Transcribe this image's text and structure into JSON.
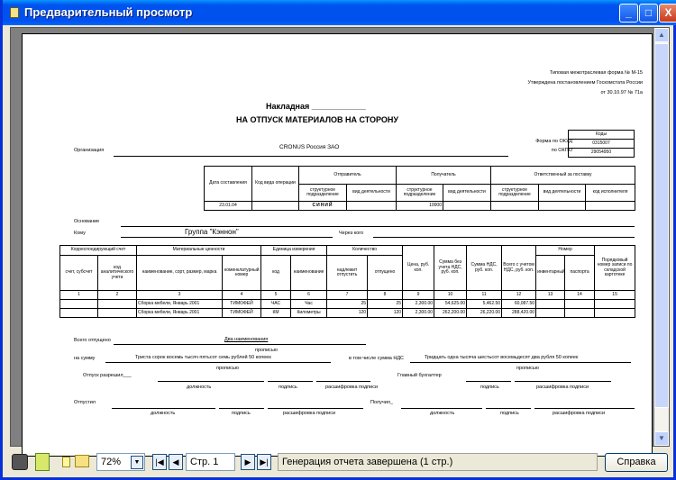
{
  "window": {
    "title": "Предварительный просмотр",
    "minimize": "_",
    "maximize": "□",
    "close": "X"
  },
  "doc": {
    "form_header": [
      "Типовая межотраслевая форма № М-15",
      "Утверждена постановлением Госкомстата России",
      "от 30.10.97 № 71а"
    ],
    "title1": "Накладная ____________",
    "title2": "НА ОТПУСК МАТЕРИАЛОВ НА СТОРОНУ",
    "codes": {
      "header": "Коды",
      "okud_label": "Форма по ОКУД",
      "okud": "0315007",
      "okpo_label": "по ОКПО",
      "okpo": "29054950"
    },
    "org_label": "Организация",
    "org": "CRONUS Россия ЗАО",
    "head_table": {
      "date": "Дата составления",
      "op_code": "Код вида операции",
      "sender": "Отправитель",
      "receiver": "Получатель",
      "responsible": "Ответственный за поставку",
      "struct": "структурное подразделение",
      "activity": "вид деятельности",
      "executor": "код исполнителя",
      "date_val": "23.01.04",
      "sender_struct": "СИНИЙ",
      "receiver_struct": "10000"
    },
    "basis_label": "Основание",
    "to_label": "Кому",
    "to": "Группа \"Кэннон\"",
    "via_label": "Через кого",
    "main_table": {
      "h_account": "Корреспондирующий счет",
      "h_material": "Материальные ценности",
      "h_unit": "Единица измерения",
      "h_qty": "Количество",
      "h_number": "Номер",
      "cols": [
        "счет, субсчет",
        "код аналитического учета",
        "наименование, сорт, размер, марка",
        "номенклатурный номер",
        "код",
        "наименование",
        "надлежит отпустить",
        "отпущено",
        "Цена, руб. коп.",
        "Сумма без учета НДС, руб. коп.",
        "Сумма НДС, руб. коп.",
        "Всего с учетом НДС, руб. коп.",
        "инвентарный",
        "паспорта",
        "Порядковый номер записи по складской картотеке"
      ],
      "nums": [
        "1",
        "2",
        "3",
        "4",
        "5",
        "6",
        "7",
        "8",
        "9",
        "10",
        "11",
        "12",
        "13",
        "14",
        "15"
      ],
      "rows": [
        [
          "",
          "",
          "Сборка мебели, Январь 2001",
          "ТИМОФЕЙ",
          "ЧАС",
          "Час",
          "25",
          "25",
          "2,300.00",
          "54,625.00",
          "5,462.50",
          "60,087.50",
          "",
          "",
          ""
        ],
        [
          "",
          "",
          "Сборка мебели, Январь 2001",
          "ТИМОФЕЙ",
          "КМ",
          "Километры",
          "120",
          "120",
          "2,300.00",
          "262,200.00",
          "26,220.00",
          "288,420.00",
          "",
          "",
          ""
        ]
      ]
    },
    "total_label": "Всего отпущено",
    "total_items": "Два наименования",
    "in_words": "прописью",
    "sum_label": "на сумму",
    "sum_words": "Триста сорок восемь тысяч пятьсот семь рублей 50 копеек",
    "vat_label": "в том числе сумма НДС",
    "vat_words": "Тридцать одна тысяча шестьсот восемьдесят два рубля 50 копеек",
    "allowed_label": "Отпуск разрешил___",
    "accountant_label": "Главный бухгалтер",
    "issued_label": "Отпустил",
    "received_label": "Получил_",
    "position": "должность",
    "signature": "подпись",
    "decoding": "расшифровка подписи"
  },
  "toolbar": {
    "zoom": "72%",
    "page": "Стр. 1",
    "status": "Генерация отчета завершена (1 стр.)",
    "help": "Справка"
  }
}
